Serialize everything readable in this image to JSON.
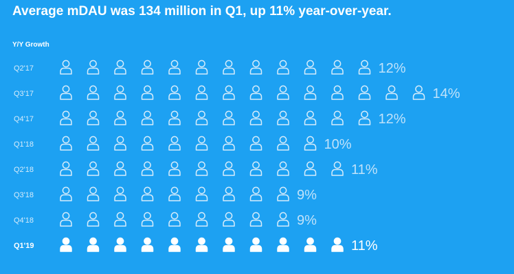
{
  "title": "Average mDAU was 134 million in Q1, up 11% year-over-year.",
  "subtitle": "Y/Y Growth",
  "colors": {
    "background": "#1da1f2",
    "icon_outline": "#d6ecfb",
    "icon_highlight": "#ffffff",
    "label_text": "#d6ecfb",
    "pct_text": "#bfe2fa"
  },
  "icon": "user-person-icon",
  "chart_data": {
    "type": "pictograph",
    "title": "Average mDAU was 134 million in Q1, up 11% year-over-year.",
    "subtitle": "Y/Y Growth",
    "categories": [
      "Q2'17",
      "Q3'17",
      "Q4'17",
      "Q1'18",
      "Q2'18",
      "Q3'18",
      "Q4'18",
      "Q1'19"
    ],
    "values": [
      12,
      14,
      12,
      10,
      11,
      9,
      9,
      11
    ],
    "labels": [
      "12%",
      "14%",
      "12%",
      "10%",
      "11%",
      "9%",
      "9%",
      "11%"
    ],
    "unit": "%",
    "highlight": "Q1'19"
  }
}
